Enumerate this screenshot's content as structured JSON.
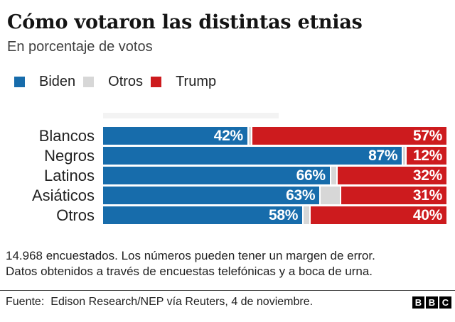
{
  "header": {
    "title": "Cómo votaron las distintas etnias",
    "subtitle": "En porcentaje de votos"
  },
  "legend": [
    {
      "label": "Biden",
      "color": "#176cab"
    },
    {
      "label": "Otros",
      "color": "#d7d7d7"
    },
    {
      "label": "Trump",
      "color": "#cd1b1e"
    }
  ],
  "chart_data": {
    "type": "bar",
    "orientation": "horizontal_stacked",
    "title": "Cómo votaron las distintas etnias",
    "subtitle": "En porcentaje de votos",
    "categories": [
      "Blancos",
      "Negros",
      "Latinos",
      "Asiáticos",
      "Otros"
    ],
    "series": [
      {
        "name": "Biden",
        "color": "#176cab",
        "values": [
          42,
          87,
          66,
          63,
          58
        ]
      },
      {
        "name": "Otros",
        "color": "#d7d7d7",
        "values": [
          1,
          1,
          2,
          6,
          2
        ]
      },
      {
        "name": "Trump",
        "color": "#cd1b1e",
        "values": [
          57,
          12,
          32,
          31,
          40
        ]
      }
    ],
    "labeled_series": [
      "Biden",
      "Trump"
    ],
    "value_label_format": "{value}%",
    "xlim": [
      0,
      100
    ],
    "grid": false,
    "legend_position": "top-left"
  },
  "footnotes": {
    "line1": "14.968 encuestados. Los números pueden tener un margen de error.",
    "line2": "Datos obtenidos a través de encuestas telefónicas y a boca de urna."
  },
  "footer": {
    "source_label": "Fuente:",
    "source_text": "Edison Research/NEP vía Reuters, 4 de noviembre.",
    "logo_letters": [
      "B",
      "B",
      "C"
    ]
  }
}
